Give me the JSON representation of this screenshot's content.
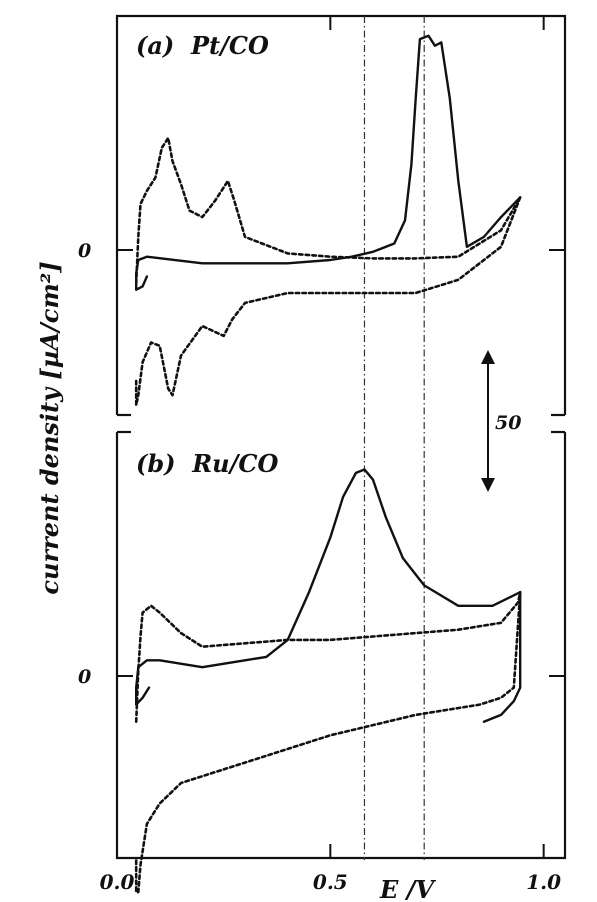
{
  "chart_data": {
    "type": "line",
    "xlabel": "E /V",
    "ylabel": "current density [µA/cm²]",
    "xlim": [
      0.0,
      1.05
    ],
    "x_ticks": [
      "0.0",
      "0.5",
      "1.0"
    ],
    "reference_lines_x": [
      0.58,
      0.72
    ],
    "scale_bar": {
      "label": "50",
      "value": 50,
      "unit": "µA/cm²"
    },
    "colors": {
      "ink": "#111111",
      "background": "#ffffff"
    },
    "panels": [
      {
        "label": "(a)  Pt/CO",
        "zero_label": "0",
        "ylim": [
          -46,
          75
        ],
        "series": [
          {
            "style": "solid",
            "x": [
              0.07,
              0.06,
              0.045,
              0.045,
              0.05,
              0.07,
              0.2,
              0.4,
              0.5,
              0.55,
              0.6,
              0.65,
              0.675,
              0.69,
              0.7,
              0.71,
              0.73,
              0.745,
              0.76,
              0.78,
              0.8,
              0.82,
              0.86,
              0.9,
              0.945
            ],
            "y": [
              -4,
              -7,
              -8,
              -3,
              1,
              2,
              0,
              0,
              1,
              2,
              3.5,
              6,
              13,
              30,
              50,
              68,
              69,
              66,
              67,
              50,
              25,
              5,
              8,
              14,
              20
            ]
          },
          {
            "style": "dotted",
            "x": [
              0.045,
              0.05,
              0.055,
              0.07,
              0.09,
              0.105,
              0.12,
              0.13,
              0.15,
              0.17,
              0.2,
              0.23,
              0.26,
              0.275,
              0.3,
              0.4,
              0.5,
              0.6,
              0.7,
              0.8,
              0.9,
              0.945
            ],
            "y": [
              -6,
              8,
              18,
              22,
              26,
              35,
              38,
              31,
              24,
              16,
              14,
              19,
              25,
              19,
              8,
              3,
              2,
              1.5,
              1.5,
              2,
              10,
              20
            ]
          },
          {
            "style": "dotted",
            "x": [
              0.945,
              0.9,
              0.8,
              0.7,
              0.6,
              0.5,
              0.4,
              0.3,
              0.27,
              0.25,
              0.2,
              0.15,
              0.13,
              0.12,
              0.1,
              0.08,
              0.06,
              0.05,
              0.045,
              0.045
            ],
            "y": [
              20,
              5,
              -5,
              -9,
              -9,
              -9,
              -9,
              -12,
              -17,
              -22,
              -19,
              -28,
              -40,
              -38,
              -25,
              -24,
              -30,
              -40,
              -43,
              -35
            ]
          }
        ]
      },
      {
        "label": "(b)  Ru/CO",
        "zero_label": "0",
        "ylim": [
          -50,
          75
        ],
        "series": [
          {
            "style": "solid",
            "x": [
              0.075,
              0.06,
              0.045,
              0.045,
              0.05,
              0.07,
              0.1,
              0.2,
              0.3,
              0.35,
              0.4,
              0.45,
              0.5,
              0.53,
              0.56,
              0.58,
              0.6,
              0.63,
              0.67,
              0.72,
              0.8,
              0.88,
              0.945,
              0.945,
              0.93,
              0.9,
              0.86
            ],
            "y": [
              0,
              -3,
              -5,
              0,
              6,
              8,
              8,
              6,
              8,
              9,
              14,
              28,
              44,
              56,
              63,
              64,
              61,
              50,
              38,
              30,
              24,
              24,
              28,
              0,
              -4,
              -8,
              -10
            ]
          },
          {
            "style": "dotted",
            "x": [
              0.045,
              0.05,
              0.055,
              0.06,
              0.08,
              0.1,
              0.15,
              0.2,
              0.3,
              0.4,
              0.5,
              0.6,
              0.7,
              0.8,
              0.9,
              0.94,
              0.945
            ],
            "y": [
              -10,
              5,
              15,
              22,
              24,
              22,
              16,
              12,
              13,
              14,
              14,
              15,
              16,
              17,
              19,
              25,
              28
            ]
          },
          {
            "style": "dotted",
            "x": [
              0.945,
              0.93,
              0.9,
              0.85,
              0.7,
              0.5,
              0.3,
              0.2,
              0.15,
              0.1,
              0.07,
              0.055,
              0.05,
              0.045,
              0.045
            ],
            "y": [
              28,
              0,
              -3,
              -5,
              -8,
              -14,
              -22,
              -26,
              -28,
              -34,
              -40,
              -52,
              -60,
              -60,
              -50
            ]
          }
        ]
      }
    ]
  }
}
